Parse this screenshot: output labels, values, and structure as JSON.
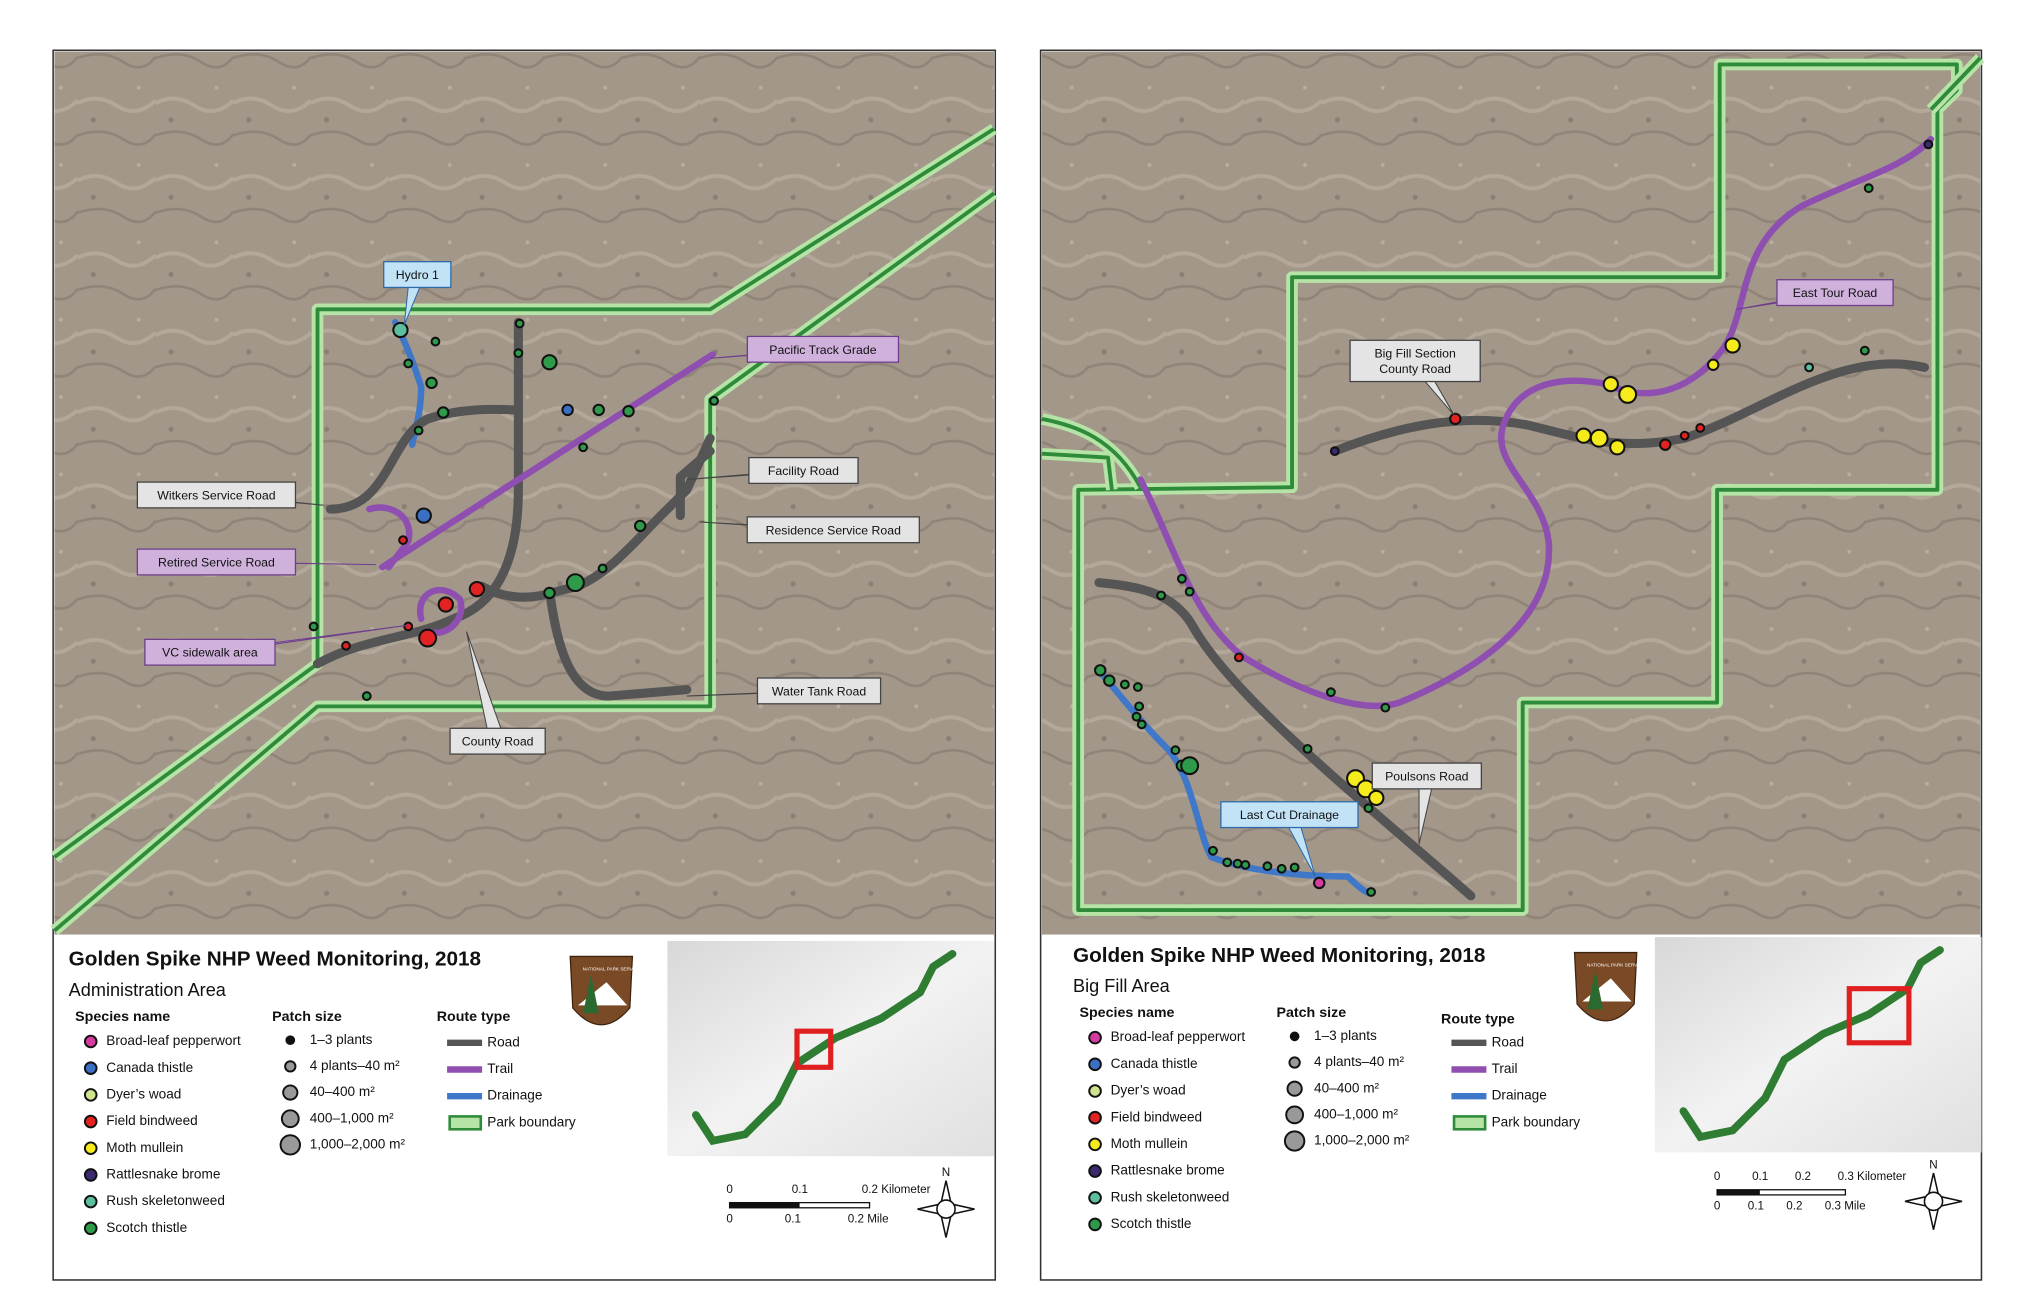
{
  "panels": [
    {
      "title": "Golden Spike NHP Weed Monitoring, 2018",
      "subtitle": "Administration Area",
      "callouts": [
        [
          "Hydro 1"
        ],
        [
          "Pacific Track Grade"
        ],
        [
          "Facility Road"
        ],
        [
          "Witkers Service Road"
        ],
        [
          "Residence Service Road"
        ],
        [
          "Retired Service Road"
        ],
        [
          "VC sidewalk area"
        ],
        [
          "Water Tank Road"
        ],
        [
          "County Road"
        ]
      ],
      "legend": {
        "species_heading": "Species name",
        "species": [
          {
            "name": "Broad-leaf pepperwort",
            "color": "#d63ca0"
          },
          {
            "name": "Canada thistle",
            "color": "#3a6fc4"
          },
          {
            "name": "Dyer’s woad",
            "color": "#cfe38e"
          },
          {
            "name": "Field bindweed",
            "color": "#e32222"
          },
          {
            "name": "Moth mullein",
            "color": "#f6ec1c"
          },
          {
            "name": "Rattlesnake brome",
            "color": "#3b2a6e"
          },
          {
            "name": "Rush skeletonweed",
            "color": "#5cbf9e"
          },
          {
            "name": "Scotch thistle",
            "color": "#2d9b4a"
          }
        ],
        "patch_heading": "Patch size",
        "patch_sizes": [
          "1–3 plants",
          "4 plants–40 m²",
          "40–400 m²",
          "400–1,000 m²",
          "1,000–2,000 m²"
        ],
        "route_heading": "Route type",
        "routes": [
          {
            "name": "Road",
            "color": "#555555"
          },
          {
            "name": "Trail",
            "color": "#8e4fb0"
          },
          {
            "name": "Drainage",
            "color": "#3f78c8"
          },
          {
            "name": "Park boundary",
            "color": "#2e8b3a"
          }
        ]
      },
      "logo": "NATIONAL PARK SERVICE",
      "scale_km": [
        "0",
        "0.1",
        "0.2 Kilometer"
      ],
      "scale_mi": [
        "0",
        "0.1",
        "0.2 Mile"
      ],
      "north": "N"
    },
    {
      "title": "Golden Spike NHP Weed Monitoring, 2018",
      "subtitle": "Big Fill Area",
      "callouts": [
        [
          "Big Fill Section",
          "County Road"
        ],
        [
          "East Tour Road"
        ],
        [
          "Poulsons Road"
        ],
        [
          "Last Cut Drainage"
        ]
      ],
      "legend": {
        "species_heading": "Species name",
        "species": [
          {
            "name": "Broad-leaf pepperwort",
            "color": "#d63ca0"
          },
          {
            "name": "Canada thistle",
            "color": "#3a6fc4"
          },
          {
            "name": "Dyer’s woad",
            "color": "#cfe38e"
          },
          {
            "name": "Field bindweed",
            "color": "#e32222"
          },
          {
            "name": "Moth mullein",
            "color": "#f6ec1c"
          },
          {
            "name": "Rattlesnake brome",
            "color": "#3b2a6e"
          },
          {
            "name": "Rush skeletonweed",
            "color": "#5cbf9e"
          },
          {
            "name": "Scotch thistle",
            "color": "#2d9b4a"
          }
        ],
        "patch_heading": "Patch size",
        "patch_sizes": [
          "1–3 plants",
          "4 plants–40 m²",
          "40–400 m²",
          "400–1,000 m²",
          "1,000–2,000 m²"
        ],
        "route_heading": "Route type",
        "routes": [
          {
            "name": "Road",
            "color": "#555555"
          },
          {
            "name": "Trail",
            "color": "#8e4fb0"
          },
          {
            "name": "Drainage",
            "color": "#3f78c8"
          },
          {
            "name": "Park boundary",
            "color": "#2e8b3a"
          }
        ]
      },
      "logo": "NATIONAL PARK SERVICE",
      "scale_km": [
        "0",
        "0.1",
        "0.2",
        "0.3 Kilometer"
      ],
      "scale_mi": [
        "0",
        "0.1",
        "0.2",
        "0.3 Mile"
      ],
      "north": "N"
    }
  ]
}
